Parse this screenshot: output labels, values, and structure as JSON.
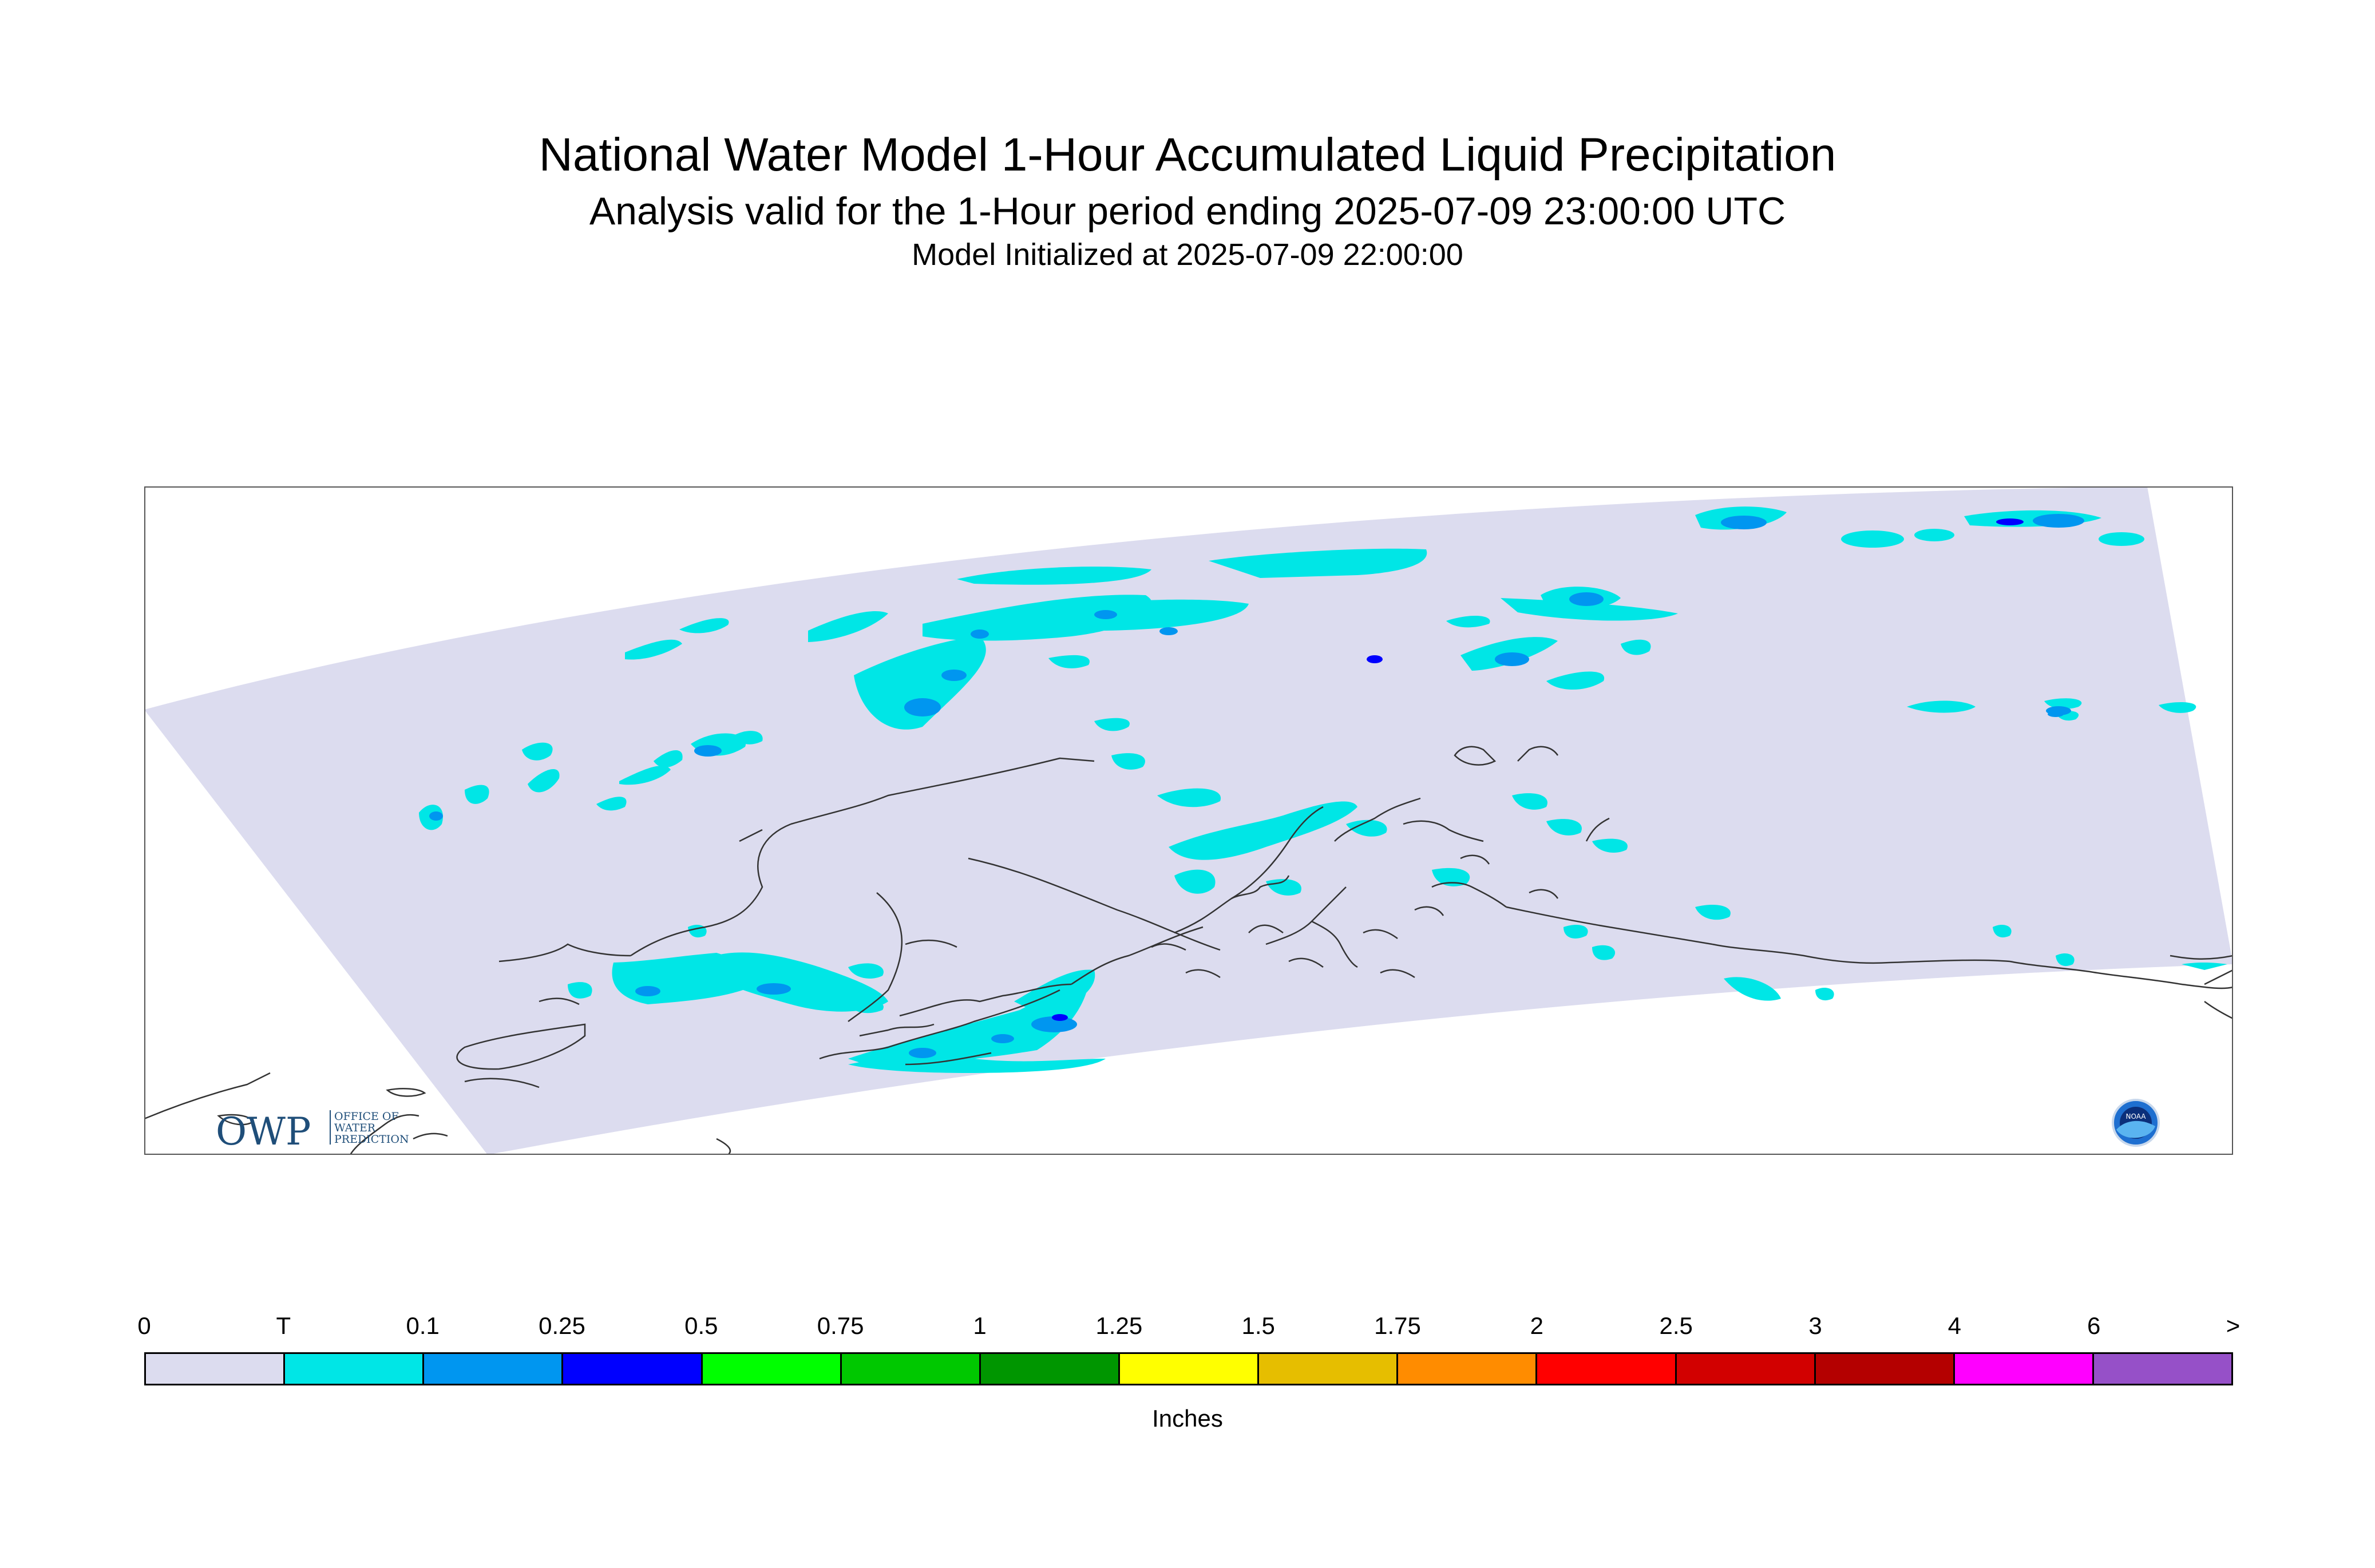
{
  "header": {
    "title": "National Water Model 1-Hour Accumulated Liquid Precipitation",
    "subtitle": "Analysis valid for the 1-Hour period ending 2025-07-09 23:00:00 UTC",
    "init": "Model Initialized at 2025-07-09 22:00:00"
  },
  "logos": {
    "owp_letters": "OWP",
    "owp_line1": "OFFICE OF",
    "owp_line2": "WATER",
    "owp_line3": "PREDICTION",
    "noaa": "NOAA"
  },
  "legend": {
    "ticks": [
      "0",
      "T",
      "0.1",
      "0.25",
      "0.5",
      "0.75",
      "1",
      "1.25",
      "1.5",
      "1.75",
      "2",
      "2.5",
      "3",
      "4",
      "6",
      ">"
    ],
    "colors": [
      "#dcdcef",
      "#00e6e6",
      "#0096f0",
      "#0000ff",
      "#00ff00",
      "#00c800",
      "#009600",
      "#ffff00",
      "#e6be00",
      "#ff8c00",
      "#ff0000",
      "#d20000",
      "#b40000",
      "#ff00ff",
      "#9650c8"
    ],
    "units": "Inches"
  },
  "colors": {
    "domain": "#dcdcef",
    "trace": "#00e6e6",
    "light": "#0096f0",
    "moderate": "#0000ff",
    "coast": "#333333"
  }
}
